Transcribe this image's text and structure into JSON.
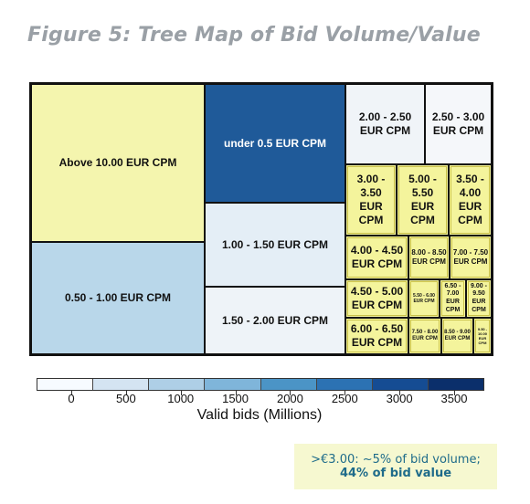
{
  "figure": {
    "title": "Figure 5: Tree Map of Bid Volume/Value",
    "note_line1": ">€3.00:  ~5% of bid volume;",
    "note_line2": "44% of bid value"
  },
  "chart_data": {
    "type": "treemap",
    "title": "Figure 5: Tree Map of Bid Volume/Value",
    "colorbar_label": "Valid bids (Millions)",
    "colorbar_ticks": [
      0,
      500,
      1000,
      1500,
      2000,
      2500,
      3000,
      3500
    ],
    "colorbar_range": [
      0,
      3500
    ],
    "colorbar_colors": [
      "#f7fbff",
      "#d4e4f2",
      "#aecfe6",
      "#7fb5da",
      "#4b94c6",
      "#2c72b3",
      "#154c93",
      "#0b2f6b"
    ],
    "highlight_color": "#f4f49c",
    "cells": [
      {
        "label": "Above 10.00 EUR CPM",
        "color": "#f4f5ae",
        "font": 12
      },
      {
        "label": "0.50 - 1.00 EUR CPM",
        "color": "#b9d7ea",
        "font": 12
      },
      {
        "label": "under 0.5 EUR CPM",
        "color": "#1f5a99",
        "font": 12,
        "dark": true
      },
      {
        "label": "1.00 - 1.50 EUR CPM",
        "color": "#e4eef6",
        "font": 12
      },
      {
        "label": "1.50 - 2.00 EUR CPM",
        "color": "#eef3f8",
        "font": 12
      },
      {
        "label": "2.00 - 2.50 EUR CPM",
        "color": "#f0f4f8",
        "font": 12
      },
      {
        "label": "2.50 - 3.00 EUR CPM",
        "color": "#f5f7fa",
        "font": 12
      },
      {
        "label": "3.00 - 3.50 EUR CPM",
        "color": "#f4f49c",
        "font": 12,
        "hl": true
      },
      {
        "label": "5.00 - 5.50 EUR CPM",
        "color": "#f4f49c",
        "font": 12,
        "hl": true
      },
      {
        "label": "3.50 - 4.00 EUR CPM",
        "color": "#f4f49c",
        "font": 12,
        "hl": true
      },
      {
        "label": "4.00 - 4.50 EUR CPM",
        "color": "#f4f49c",
        "font": 12,
        "hl": true
      },
      {
        "label": "8.00 - 8.50 EUR CPM",
        "color": "#f4f49c",
        "font": 8,
        "hl": true
      },
      {
        "label": "7.00 - 7.50 EUR CPM",
        "color": "#f4f49c",
        "font": 8,
        "hl": true
      },
      {
        "label": "4.50 - 5.00 EUR CPM",
        "color": "#f4f49c",
        "font": 12,
        "hl": true
      },
      {
        "label": "5.50 - 6.00 EUR CPM",
        "color": "#f4f49c",
        "font": 5,
        "hl": true
      },
      {
        "label": "6.50 - 7.00 EUR CPM",
        "color": "#f4f49c",
        "font": 7,
        "hl": true
      },
      {
        "label": "9.00 - 9.50 EUR CPM",
        "color": "#f4f49c",
        "font": 7,
        "hl": true
      },
      {
        "label": "6.00 - 6.50 EUR CPM",
        "color": "#f4f49c",
        "font": 12,
        "hl": true
      },
      {
        "label": "7.50 - 8.00 EUR CPM",
        "color": "#f4f49c",
        "font": 6,
        "hl": true
      },
      {
        "label": "8.50 - 9.00 EUR CPM",
        "color": "#f4f49c",
        "font": 6,
        "hl": true
      },
      {
        "label": "9.50 - 10.00 EUR CPM",
        "color": "#f4f49c",
        "font": 4,
        "hl": true
      }
    ]
  }
}
